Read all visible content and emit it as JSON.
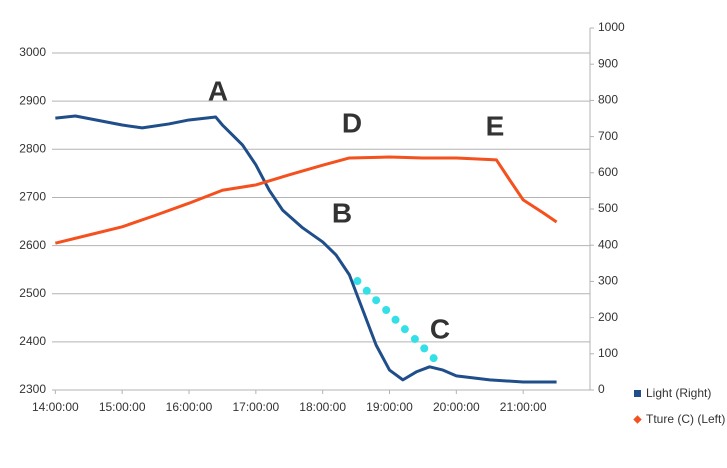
{
  "chart_data": {
    "type": "line",
    "xlim": [
      13.95,
      22.0
    ],
    "xticks": [
      {
        "value": 14,
        "label": "14:00:00"
      },
      {
        "value": 15,
        "label": "15:00:00"
      },
      {
        "value": 16,
        "label": "16:00:00"
      },
      {
        "value": 17,
        "label": "17:00:00"
      },
      {
        "value": 18,
        "label": "18:00:00"
      },
      {
        "value": 19,
        "label": "19:00:00"
      },
      {
        "value": 20,
        "label": "20:00:00"
      },
      {
        "value": 21,
        "label": "21:00:00"
      }
    ],
    "ylim": [
      2300,
      3052
    ],
    "yticks": [
      2300,
      2400,
      2500,
      2600,
      2700,
      2800,
      2900,
      3000
    ],
    "y2lim": [
      0,
      1000
    ],
    "y2ticks": [
      0,
      100,
      200,
      300,
      400,
      500,
      600,
      700,
      800,
      900,
      1000
    ],
    "grid": true,
    "annotations": [
      "A",
      "B",
      "C",
      "D",
      "E"
    ],
    "annotation_color": "#e07b28",
    "series": [
      {
        "name": "Light (Right)",
        "color": "#1f4e8a",
        "axis": "y2",
        "marker": "square",
        "x": [
          14.0,
          14.3,
          15.0,
          15.3,
          15.7,
          16.0,
          16.4,
          16.5,
          16.8,
          17.0,
          17.2,
          17.4,
          17.7,
          18.0,
          18.2,
          18.4,
          18.6,
          18.8,
          19.0,
          19.2,
          19.4,
          19.6,
          19.8,
          20.0,
          20.5,
          21.0,
          21.5
        ],
        "values": [
          751,
          757,
          732,
          724,
          735,
          746,
          754,
          732,
          677,
          622,
          552,
          497,
          448,
          409,
          373,
          318,
          221,
          124,
          55,
          28,
          50,
          64,
          55,
          39,
          28,
          22,
          22
        ]
      },
      {
        "name": "Tture (C) (Left)",
        "color": "#f4511e",
        "axis": "y",
        "marker": "diamond",
        "x": [
          14.0,
          14.5,
          15.0,
          15.5,
          16.0,
          16.5,
          17.0,
          17.5,
          18.0,
          18.4,
          19.0,
          19.5,
          20.0,
          20.6,
          20.8,
          21.0,
          21.3,
          21.5
        ],
        "values": [
          2605,
          2622,
          2639,
          2663,
          2688,
          2715,
          2726,
          2747,
          2767,
          2782,
          2784,
          2782,
          2782,
          2778,
          2736,
          2695,
          2668,
          2649
        ]
      },
      {
        "color": "#33e0e8",
        "axis": "y2",
        "style": "dots",
        "x": [
          18.52,
          18.66,
          18.8,
          18.95,
          19.09,
          19.23,
          19.38,
          19.52,
          19.66
        ],
        "values": [
          301,
          274,
          248,
          221,
          194,
          168,
          141,
          115,
          88
        ]
      }
    ]
  }
}
